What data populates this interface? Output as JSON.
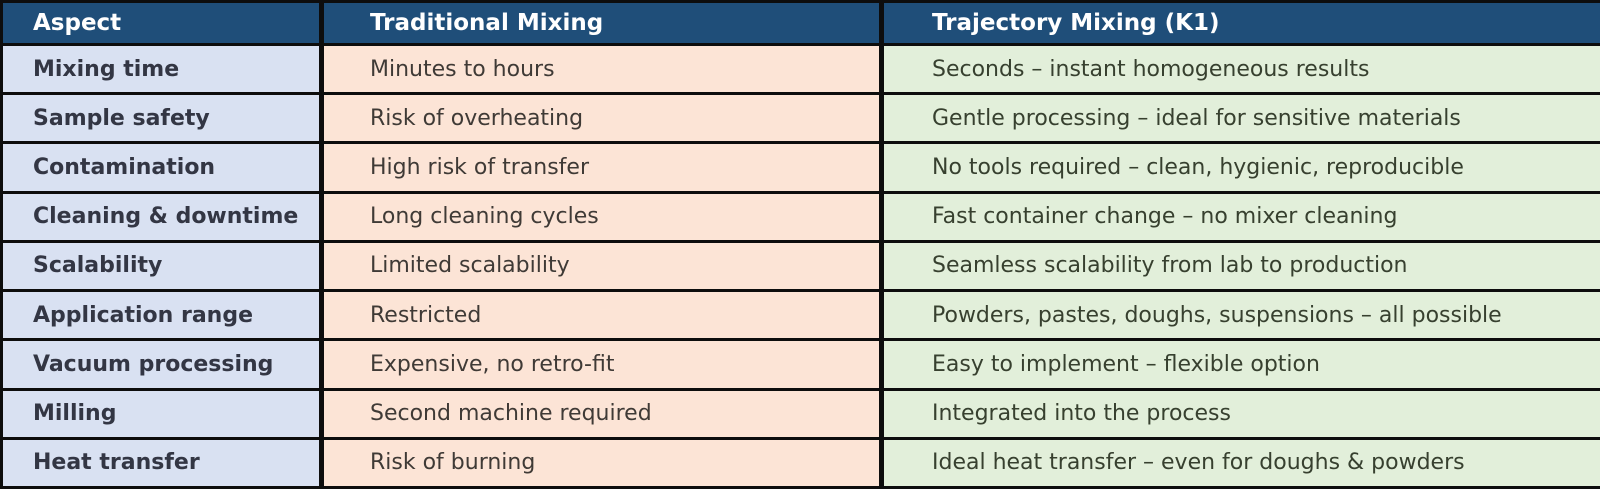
{
  "colors": {
    "header_bg": "#1F4E79",
    "header_text": "#FFFFFF",
    "aspect_col_bg": "#D9E1F2",
    "traditional_col_bg": "#FCE4D6",
    "trajectory_col_bg": "#E2EFDA",
    "border": "#0D0D0D",
    "aspect_text": "#333644",
    "traditional_text": "#3F3A36",
    "trajectory_text": "#37402F"
  },
  "chart_data": {
    "type": "table",
    "title": "",
    "columns": [
      "Aspect",
      "Traditional Mixing",
      "Trajectory Mixing (K1)"
    ],
    "rows": [
      [
        "Mixing time",
        "Minutes to hours",
        "Seconds – instant homogeneous results"
      ],
      [
        "Sample safety",
        "Risk of overheating",
        "Gentle processing – ideal for sensitive materials"
      ],
      [
        "Contamination",
        "High risk of transfer",
        "No tools required – clean, hygienic, reproducible"
      ],
      [
        "Cleaning & downtime",
        "Long cleaning cycles",
        "Fast container change – no mixer cleaning"
      ],
      [
        "Scalability",
        "Limited scalability",
        "Seamless scalability from lab to production"
      ],
      [
        "Application range",
        "Restricted",
        "Powders, pastes, doughs, suspensions – all possible"
      ],
      [
        "Vacuum processing",
        "Expensive, no retro-fit",
        "Easy to implement – flexible option"
      ],
      [
        "Milling",
        "Second machine required",
        "Integrated into the process"
      ],
      [
        "Heat transfer",
        "Risk of burning",
        "Ideal heat transfer – even for doughs & powders"
      ]
    ]
  }
}
